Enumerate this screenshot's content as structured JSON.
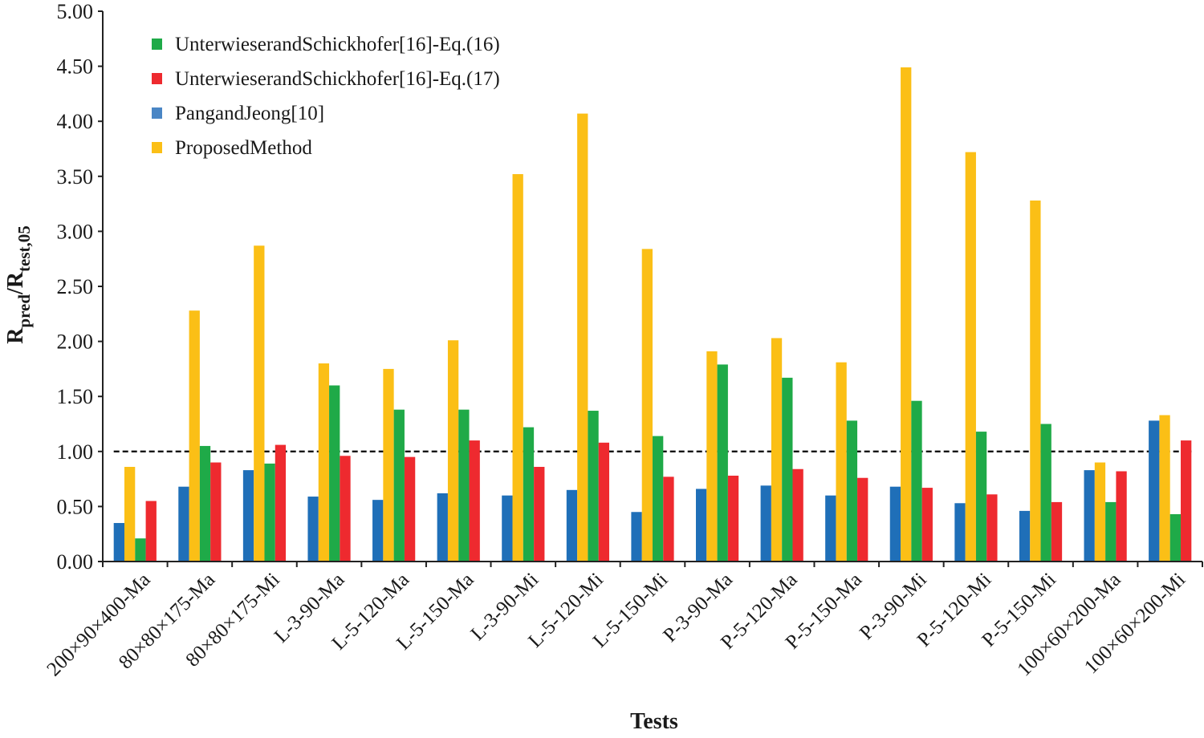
{
  "chart_data": {
    "type": "bar",
    "title": "",
    "xlabel": "Tests",
    "ylabel": {
      "main": "R",
      "sub1": "pred",
      "slash": "/R",
      "sub2": "test,05"
    },
    "ylim": [
      0,
      5
    ],
    "y_ticks": [
      "0.00",
      "0.50",
      "1.00",
      "1.50",
      "2.00",
      "2.50",
      "3.00",
      "3.50",
      "4.00",
      "4.50",
      "5.00"
    ],
    "reference_line": {
      "y": 1.0,
      "style": "dashed"
    },
    "legend_position": "top-left",
    "categories": [
      "200×90×400-Ma",
      "80×80×175-Ma",
      "80×80×175-Mi",
      "L-3-90-Ma",
      "L-5-120-Ma",
      "L-5-150-Ma",
      "L-3-90-Mi",
      "L-5-120-Mi",
      "L-5-150-Mi",
      "P-3-90-Ma",
      "P-5-120-Ma",
      "P-5-150-Ma",
      "P-3-90-Mi",
      "P-5-120-Mi",
      "P-5-150-Mi",
      "100×60×200-Ma",
      "100×60×200-Mi"
    ],
    "series": [
      {
        "name": "PangandJeong[10]",
        "color": "#1f6fb8",
        "values": [
          0.35,
          0.68,
          0.83,
          0.59,
          0.56,
          0.62,
          0.6,
          0.65,
          0.45,
          0.66,
          0.69,
          0.6,
          0.68,
          0.53,
          0.46,
          0.83,
          1.28
        ]
      },
      {
        "name": "ProposedMethod",
        "color": "#fbbf16",
        "values": [
          0.86,
          2.28,
          2.87,
          1.8,
          1.75,
          2.01,
          3.52,
          4.07,
          2.84,
          1.91,
          2.03,
          1.81,
          4.49,
          3.72,
          3.28,
          0.9,
          1.33
        ]
      },
      {
        "name": "UnterwieserandSchickhofer[16]-Eq.(16)",
        "color": "#1faa48",
        "values": [
          0.21,
          1.05,
          0.89,
          1.6,
          1.38,
          1.38,
          1.22,
          1.37,
          1.14,
          1.79,
          1.67,
          1.28,
          1.46,
          1.18,
          1.25,
          0.54,
          0.43
        ]
      },
      {
        "name": "UnterwieserandSchickhofer[16]-Eq.(17)",
        "color": "#ee2a2f",
        "values": [
          0.55,
          0.9,
          1.06,
          0.96,
          0.95,
          1.1,
          0.86,
          1.08,
          0.77,
          0.78,
          0.84,
          0.76,
          0.67,
          0.61,
          0.54,
          0.82,
          1.1
        ]
      }
    ],
    "legend": [
      {
        "name": "UnterwieserandSchickhofer[16]-Eq.(16)",
        "color": "#1faa48"
      },
      {
        "name": "UnterwieserandSchickhofer[16]-Eq.(17)",
        "color": "#ee2a2f"
      },
      {
        "name": "PangandJeong[10]",
        "color": "#4a86c5"
      },
      {
        "name": "ProposedMethod",
        "color": "#fbbf16"
      }
    ]
  }
}
